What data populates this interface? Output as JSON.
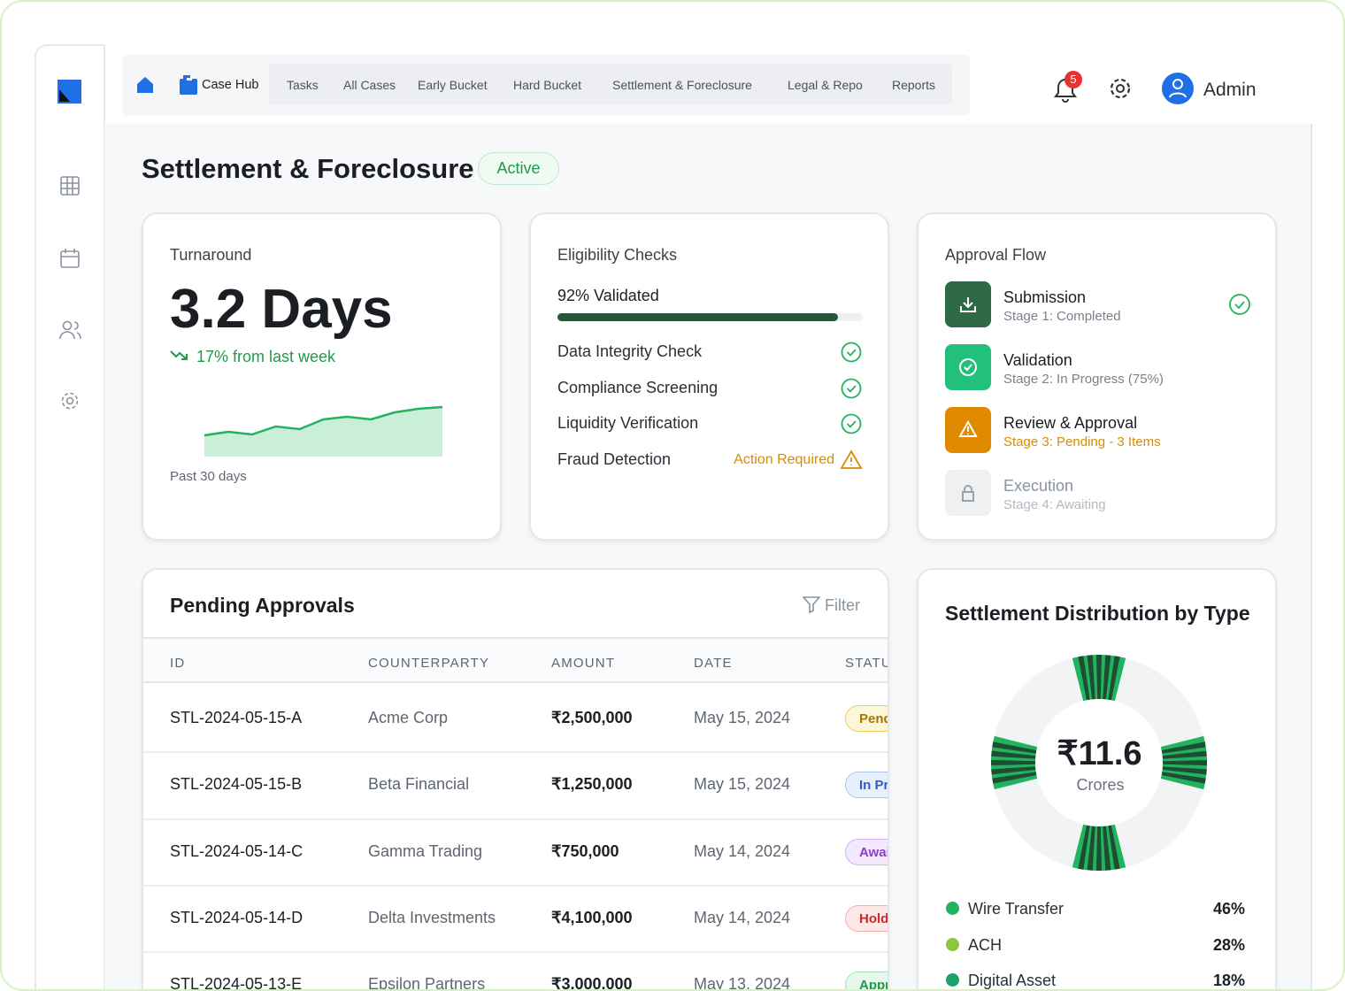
{
  "nav": {
    "items": [
      "Case Hub",
      "Tasks",
      "All Cases",
      "Early Bucket",
      "Hard Bucket",
      "Settlement & Foreclosure",
      "Legal & Repo",
      "Reports"
    ],
    "notifications": "5",
    "user": "Admin"
  },
  "page": {
    "title": "Settlement & Foreclosure",
    "status": "Active"
  },
  "turnaround": {
    "label": "Turnaround",
    "value": "3.2 Days",
    "change": "17% from last week",
    "trend": [
      24,
      28,
      25,
      34,
      31,
      42,
      45,
      42,
      50,
      54,
      56
    ],
    "footnote": "Past 30 days"
  },
  "eligibility": {
    "title": "Eligibility Checks",
    "progress": {
      "value": 92,
      "label": "92% Validated"
    },
    "checks": [
      {
        "name": "Data Integrity Check"
      },
      {
        "name": "Compliance Screening"
      },
      {
        "name": "Liquidity Verification"
      },
      {
        "name": "Fraud Detection",
        "status": "Action Required"
      }
    ]
  },
  "approval_flow": {
    "title": "Approval Flow",
    "stages": [
      {
        "name": "Submission",
        "status": "Stage 1: Completed"
      },
      {
        "name": "Validation",
        "status": "Stage 2: In Progress (75%)"
      },
      {
        "name": "Review & Approval",
        "status": "Stage 3: Pending - 3 Items"
      },
      {
        "name": "Execution",
        "status": "Stage 4: Awaiting"
      }
    ]
  },
  "pending": {
    "title": "Pending Approvals",
    "filter": "Filter",
    "columns": [
      "ID",
      "COUNTERPARTY",
      "AMOUNT",
      "DATE",
      "STATU"
    ],
    "rows": [
      [
        "STL-2024-05-15-A",
        "Acme Corp",
        "₹2,500,000",
        "May 15, 2024",
        "Pend"
      ],
      [
        "STL-2024-05-15-B",
        "Beta Financial",
        "₹1,250,000",
        "May 15, 2024",
        "In Pr"
      ],
      [
        "STL-2024-05-14-C",
        "Gamma Trading",
        "₹750,000",
        "May 14, 2024",
        "Awai"
      ],
      [
        "STL-2024-05-14-D",
        "Delta Investments",
        "₹4,100,000",
        "May 14, 2024",
        "Hold"
      ],
      [
        "STL-2024-05-13-E",
        "Epsilon Partners",
        "₹3,000,000",
        "May 13, 2024",
        "Appr"
      ]
    ]
  },
  "distribution": {
    "title": "Settlement Distribution by Type",
    "center_value": "₹11.6",
    "center_unit": "Crores",
    "items": [
      {
        "name": "Wire Transfer",
        "share": "46%",
        "color": "#22b35e"
      },
      {
        "name": "ACH",
        "share": "28%",
        "color": "#8cc63f"
      },
      {
        "name": "Digital Asset",
        "share": "18%",
        "color": "#1aa36a"
      }
    ]
  }
}
